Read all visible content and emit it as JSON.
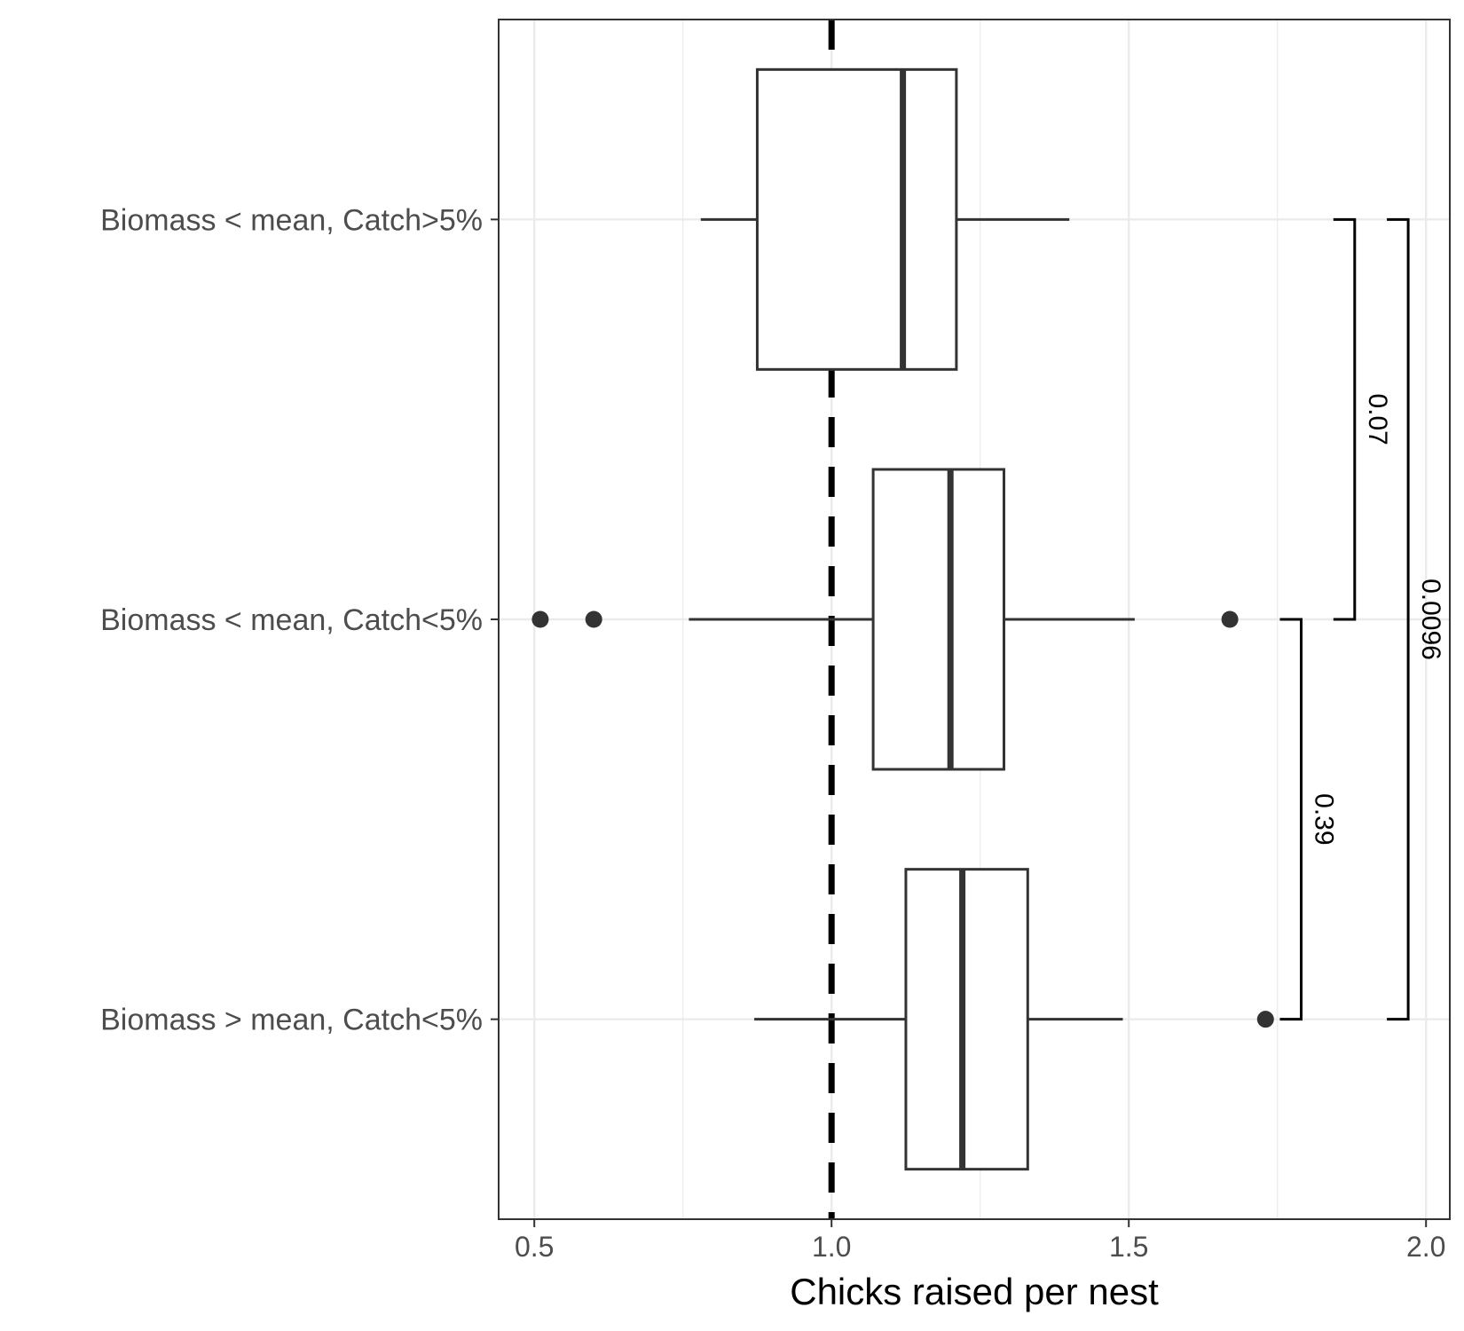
{
  "chart_data": {
    "type": "boxplot",
    "orientation": "horizontal",
    "xlabel": "Chicks raised per nest",
    "ylabel": "",
    "xlim": [
      0.44,
      2.04
    ],
    "xticks": [
      {
        "value": 0.5,
        "label": "0.5"
      },
      {
        "value": 1.0,
        "label": "1.0"
      },
      {
        "value": 1.5,
        "label": "1.5"
      },
      {
        "value": 2.0,
        "label": "2.0"
      }
    ],
    "grid": true,
    "reference_line": {
      "x": 1.0,
      "style": "dashed"
    },
    "colors": {
      "box_stroke": "#333333",
      "grid": "#ebebeb",
      "reference": "#000000"
    },
    "categories": [
      "Biomass < mean, Catch>5%",
      "Biomass < mean, Catch<5%",
      "Biomass > mean, Catch<5%"
    ],
    "boxes": [
      {
        "category": "Biomass < mean, Catch>5%",
        "whisker_low": 0.78,
        "q1": 0.875,
        "median": 1.12,
        "q3": 1.21,
        "whisker_high": 1.4,
        "outliers": []
      },
      {
        "category": "Biomass < mean, Catch<5%",
        "whisker_low": 0.76,
        "q1": 1.07,
        "median": 1.2,
        "q3": 1.29,
        "whisker_high": 1.51,
        "outliers": [
          0.51,
          0.6,
          1.67
        ]
      },
      {
        "category": "Biomass > mean, Catch<5%",
        "whisker_low": 0.87,
        "q1": 1.125,
        "median": 1.22,
        "q3": 1.33,
        "whisker_high": 1.49,
        "outliers": [
          1.73
        ]
      }
    ],
    "comparisons": [
      {
        "from": "Biomass < mean, Catch>5%",
        "to": "Biomass < mean, Catch<5%",
        "p_value": "0.07",
        "x": 1.88
      },
      {
        "from": "Biomass < mean, Catch<5%",
        "to": "Biomass > mean, Catch<5%",
        "p_value": "0.39",
        "x": 1.79
      },
      {
        "from": "Biomass < mean, Catch>5%",
        "to": "Biomass > mean, Catch<5%",
        "p_value": "0.0096",
        "x": 1.97
      }
    ]
  }
}
